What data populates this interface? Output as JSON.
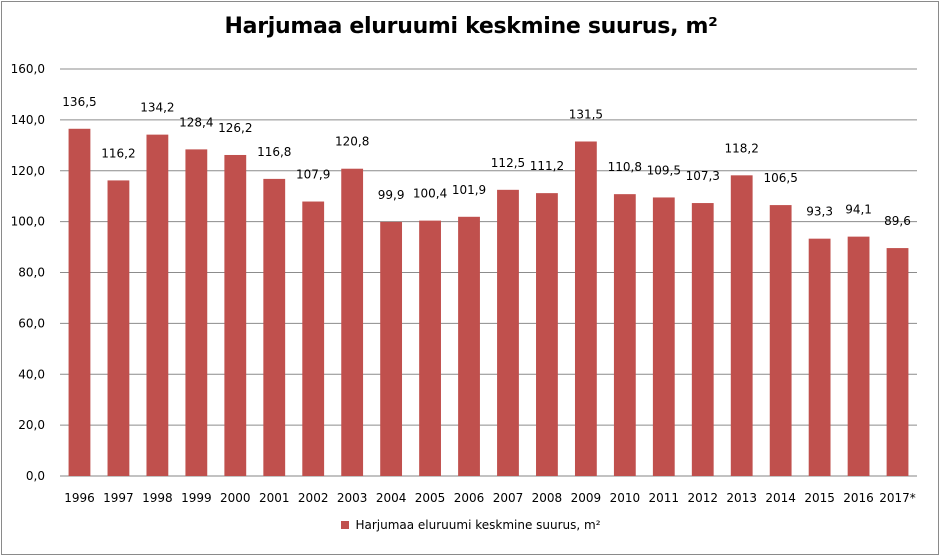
{
  "chart_data": {
    "type": "bar",
    "title": "Harjumaa eluruumi keskmine suurus, m²",
    "xlabel": "",
    "ylabel": "",
    "ylim": [
      0,
      160
    ],
    "yticks": [
      "0,0",
      "20,0",
      "40,0",
      "60,0",
      "80,0",
      "100,0",
      "120,0",
      "140,0",
      "160,0"
    ],
    "categories": [
      "1996",
      "1997",
      "1998",
      "1999",
      "2000",
      "2001",
      "2002",
      "2003",
      "2004",
      "2005",
      "2006",
      "2007",
      "2008",
      "2009",
      "2010",
      "2011",
      "2012",
      "2013",
      "2014",
      "2015",
      "2016",
      "2017*"
    ],
    "series": [
      {
        "name": "Harjumaa eluruumi keskmine suurus, m²",
        "color": "#c0504d",
        "values": [
          136.5,
          116.2,
          134.2,
          128.4,
          126.2,
          116.8,
          107.9,
          120.8,
          99.9,
          100.4,
          101.9,
          112.5,
          111.2,
          131.5,
          110.8,
          109.5,
          107.3,
          118.2,
          106.5,
          93.3,
          94.1,
          89.6
        ],
        "labels": [
          "136,5",
          "116,2",
          "134,2",
          "128,4",
          "126,2",
          "116,8",
          "107,9",
          "120,8",
          "99,9",
          "100,4",
          "101,9",
          "112,5",
          "111,2",
          "131,5",
          "110,8",
          "109,5",
          "107,3",
          "118,2",
          "106,5",
          "93,3",
          "94,1",
          "89,6"
        ]
      }
    ],
    "grid": true,
    "legend_position": "bottom"
  }
}
